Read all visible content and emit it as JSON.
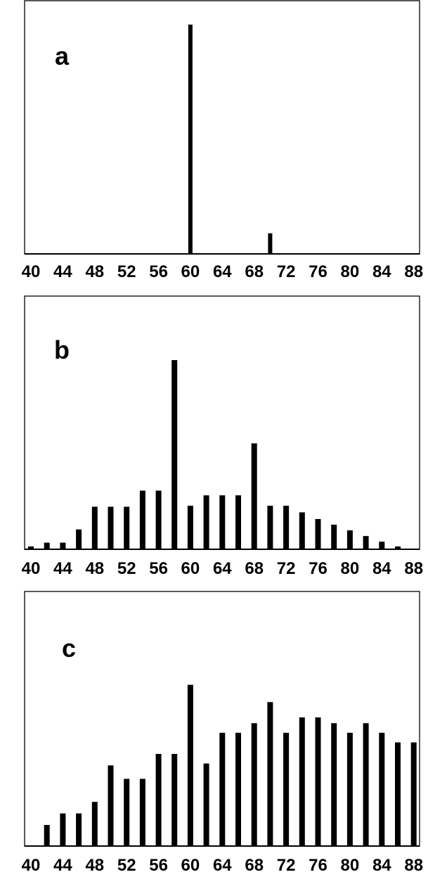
{
  "chart_data": [
    {
      "type": "bar",
      "panel_label": "a",
      "x": [
        60,
        70
      ],
      "values": [
        100,
        9
      ],
      "xticks": [
        40,
        44,
        48,
        52,
        56,
        60,
        64,
        68,
        72,
        76,
        80,
        84,
        88
      ],
      "xlim": [
        40,
        89
      ],
      "ylim": [
        0,
        100
      ],
      "grid": false
    },
    {
      "type": "bar",
      "panel_label": "b",
      "x": [
        40,
        42,
        44,
        46,
        48,
        50,
        52,
        54,
        56,
        58,
        60,
        62,
        64,
        66,
        68,
        70,
        72,
        74,
        76,
        78,
        80,
        82,
        84,
        86,
        88
      ],
      "values": [
        1.5,
        3.5,
        3.5,
        10.5,
        22.5,
        22.5,
        22.5,
        31,
        31,
        100,
        23,
        28.5,
        28.5,
        28.5,
        56,
        23,
        23,
        19.5,
        16,
        13,
        10,
        7,
        4,
        1.5,
        0
      ],
      "xticks": [
        40,
        44,
        48,
        52,
        56,
        60,
        64,
        68,
        72,
        76,
        80,
        84,
        88
      ],
      "xlim": [
        40,
        89
      ],
      "ylim": [
        0,
        100
      ],
      "grid": false
    },
    {
      "type": "bar",
      "panel_label": "c",
      "x": [
        42,
        44,
        46,
        48,
        50,
        52,
        54,
        56,
        58,
        60,
        62,
        64,
        66,
        68,
        70,
        72,
        74,
        76,
        78,
        80,
        82,
        84,
        86,
        88
      ],
      "values": [
        11,
        17,
        17,
        23,
        42,
        35,
        35,
        48,
        48,
        84,
        43,
        59,
        59,
        64,
        75,
        59,
        67,
        67,
        64,
        59,
        64,
        59,
        54,
        54
      ],
      "xticks": [
        40,
        44,
        48,
        52,
        56,
        60,
        64,
        68,
        72,
        76,
        80,
        84,
        88
      ],
      "xlim": [
        40,
        89
      ],
      "ylim": [
        0,
        100
      ],
      "grid": false
    }
  ]
}
